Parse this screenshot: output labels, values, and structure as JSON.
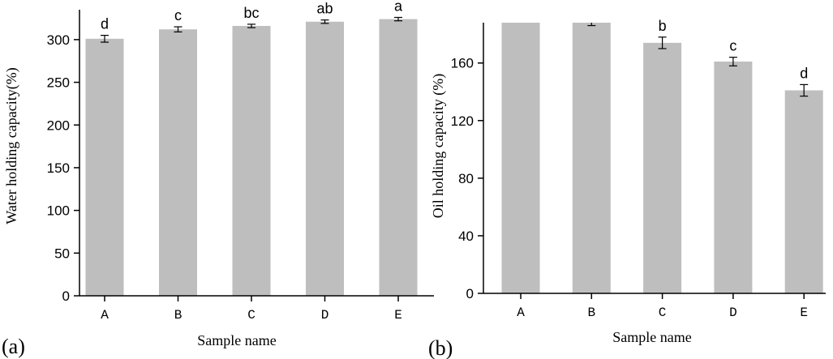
{
  "chart_data": [
    {
      "type": "bar",
      "panel_label": "(a)",
      "categories": [
        "A",
        "B",
        "C",
        "D",
        "E"
      ],
      "values": [
        301,
        312,
        316,
        321,
        324
      ],
      "errors": [
        4,
        3,
        2,
        2,
        2
      ],
      "significance": [
        "d",
        "c",
        "bc",
        "ab",
        "a"
      ],
      "xlabel": "Sample name",
      "ylabel": "Water holding capacity(%)",
      "ylim": [
        0,
        335
      ],
      "yticks": [
        0,
        50,
        100,
        150,
        200,
        250,
        300
      ],
      "bar_color": "#bebebe"
    },
    {
      "type": "bar",
      "panel_label": "(b)",
      "categories": [
        "A",
        "B",
        "C",
        "D",
        "E"
      ],
      "values": [
        190,
        188,
        174,
        161,
        141
      ],
      "errors": [
        0,
        2,
        4,
        3,
        4
      ],
      "significance": [
        "",
        "",
        "b",
        "c",
        "d"
      ],
      "xlabel": "Sample name",
      "ylabel": "Oil holding capacity (%)",
      "ylim": [
        0,
        188
      ],
      "yticks": [
        0,
        40,
        80,
        120,
        160
      ],
      "bar_color": "#bebebe"
    }
  ]
}
